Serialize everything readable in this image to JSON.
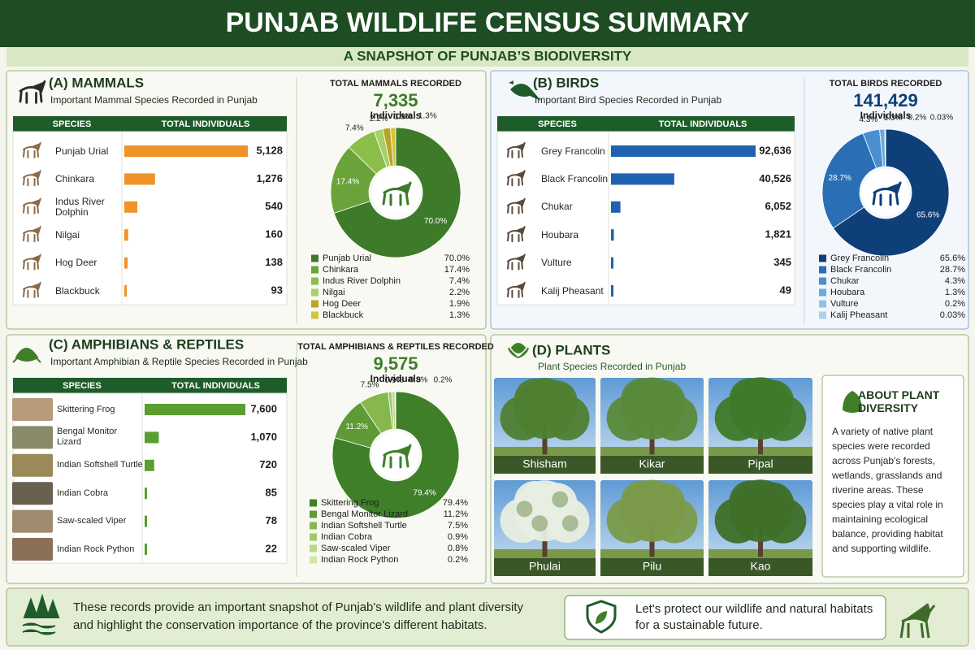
{
  "header": {
    "title": "PUNJAB WILDLIFE CENSUS SUMMARY",
    "subtitle": "A SNAPSHOT OF PUNJAB’S BIODIVERSITY"
  },
  "chart_data": [
    {
      "type": "bar",
      "title": "(A) MAMMALS",
      "subtitle": "Important Mammal Species Recorded in Punjab",
      "column_headers": [
        "SPECIES",
        "TOTAL INDIVIDUALS"
      ],
      "categories": [
        "Punjab Urial",
        "Chinkara",
        "Indus River Dolphin",
        "Nilgai",
        "Hog Deer",
        "Blackbuck"
      ],
      "values": [
        5128,
        1276,
        540,
        160,
        138,
        93
      ],
      "value_labels": [
        "5,128",
        "1,276",
        "540",
        "160",
        "138",
        "93"
      ],
      "color": "#f0922a"
    },
    {
      "type": "pie",
      "title": "TOTAL MAMMALS RECORDED",
      "total": {
        "value": 7335,
        "label": "7,335"
      },
      "unit": "Individuals",
      "categories": [
        "Punjab Urial",
        "Chinkara",
        "Indus River Dolphin",
        "Nilgai",
        "Hog Deer",
        "Blackbuck"
      ],
      "values": [
        70.0,
        17.4,
        7.4,
        2.2,
        1.9,
        1.3
      ],
      "value_labels": [
        "70.0%",
        "17.4%",
        "7.4%",
        "2.2%",
        "1.9%",
        "1.3%"
      ],
      "colors": [
        "#3d7a2a",
        "#6aa33a",
        "#8cbf4a",
        "#a8cf6a",
        "#b9a626",
        "#d6c43c"
      ]
    },
    {
      "type": "bar",
      "title": "(B) BIRDS",
      "subtitle": "Important Bird Species Recorded in Punjab",
      "column_headers": [
        "SPECIES",
        "TOTAL INDIVIDUALS"
      ],
      "categories": [
        "Grey Francolin",
        "Black Francolin",
        "Chukar",
        "Houbara",
        "Vulture",
        "Kalij Pheasant"
      ],
      "values": [
        92636,
        40526,
        6052,
        1821,
        345,
        49
      ],
      "value_labels": [
        "92,636",
        "40,526",
        "6,052",
        "1,821",
        "345",
        "49"
      ],
      "color": "#1f62b0"
    },
    {
      "type": "pie",
      "title": "TOTAL BIRDS RECORDED",
      "total": {
        "value": 141429,
        "label": "141,429"
      },
      "unit": "Individuals",
      "categories": [
        "Grey Francolin",
        "Black Francolin",
        "Chukar",
        "Houbara",
        "Vulture",
        "Kalij Pheasant"
      ],
      "values": [
        65.6,
        28.7,
        4.3,
        1.3,
        0.2,
        0.03
      ],
      "value_labels": [
        "65.6%",
        "28.7%",
        "4.3%",
        "1.3%",
        "0.2%",
        "0.03%"
      ],
      "colors": [
        "#0f3f78",
        "#2a6fb5",
        "#4a8fd0",
        "#6aaae0",
        "#8fc0ea",
        "#a8d0f0"
      ]
    },
    {
      "type": "bar",
      "title": "(C) AMPHIBIANS & REPTILES",
      "subtitle": "Important Amphibian & Reptile Species Recorded in Punjab",
      "column_headers": [
        "SPECIES",
        "TOTAL INDIVIDUALS"
      ],
      "categories": [
        "Skittering Frog",
        "Bengal Monitor Lizard",
        "Indian Softshell Turtle",
        "Indian Cobra",
        "Saw-scaled Viper",
        "Indian Rock Python"
      ],
      "values": [
        7600,
        1070,
        720,
        85,
        78,
        22
      ],
      "value_labels": [
        "7,600",
        "1,070",
        "720",
        "85",
        "78",
        "22"
      ],
      "color": "#5a9e30"
    },
    {
      "type": "pie",
      "title": "TOTAL AMPHIBIANS & REPTILES RECORDED",
      "total": {
        "value": 9575,
        "label": "9,575"
      },
      "unit": "Individuals",
      "categories": [
        "Skittering Frog",
        "Bengal Monitor Lizard",
        "Indian Softshell Turtle",
        "Indian Cobra",
        "Saw-scaled Viper",
        "Indian Rock Python"
      ],
      "values": [
        79.4,
        11.2,
        7.5,
        0.9,
        0.8,
        0.2
      ],
      "value_labels": [
        "79.4%",
        "11.2%",
        "7.5%",
        "0.9%",
        "0.8%",
        "0.2%"
      ],
      "colors": [
        "#3f7f2a",
        "#5e9a36",
        "#86b84e",
        "#a2c86a",
        "#bcd88a",
        "#d2e6a8"
      ]
    }
  ],
  "plants": {
    "title": "(D) PLANTS",
    "subtitle": "Plant Species Recorded in Punjab",
    "species": [
      "Shisham",
      "Kikar",
      "Pipal",
      "Phulai",
      "Pilu",
      "Kao"
    ],
    "about": {
      "title": "ABOUT PLANT DIVERSITY",
      "text": "A variety of native plant species were recorded across Punjab's forests, wetlands, grasslands and riverine areas. These species play a vital role in maintaining ecological balance, providing habitat and supporting wildlife."
    }
  },
  "footer": {
    "note": "These records provide an important snapshot of Punjab's wildlife and plant diversity and highlight the conservation importance of the province's different habitats.",
    "call_to_action": "Let's protect our wildlife and natural habitats for a sustainable future."
  }
}
